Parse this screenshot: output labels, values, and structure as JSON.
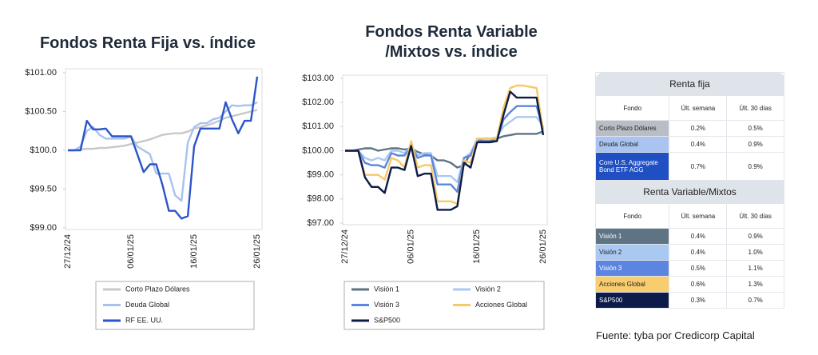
{
  "chart_data": [
    {
      "type": "line",
      "title": "Fondos Renta Fija vs. índice",
      "categories": [
        "27/12/24",
        null,
        null,
        null,
        null,
        null,
        null,
        null,
        null,
        null,
        "06/01/25",
        null,
        null,
        null,
        null,
        null,
        null,
        null,
        null,
        null,
        "16/01/25",
        null,
        null,
        null,
        null,
        null,
        null,
        null,
        null,
        null,
        "26/01/25"
      ],
      "ylim": [
        99,
        101
      ],
      "yticks": [
        {
          "value": 99,
          "label": "$99.00"
        },
        {
          "value": 99.5,
          "label": "$99.50"
        },
        {
          "value": 100,
          "label": "$100.0"
        },
        {
          "value": 100.5,
          "label": "$100.50"
        },
        {
          "value": 101,
          "label": "$101.00"
        }
      ],
      "series": [
        {
          "name": "Corto Plazo Dólares",
          "color": "#c8c8c8",
          "values": [
            100,
            100,
            100.01,
            100.02,
            100.02,
            100.03,
            100.03,
            100.04,
            100.05,
            100.06,
            100.08,
            100.1,
            100.12,
            100.14,
            100.17,
            100.2,
            100.21,
            100.22,
            100.22,
            100.24,
            100.28,
            100.3,
            100.32,
            100.35,
            100.38,
            100.42,
            100.44,
            100.46,
            100.48,
            100.5,
            100.52
          ]
        },
        {
          "name": "Deuda Global",
          "color": "#a8c2ef",
          "values": [
            100,
            100,
            100.05,
            100.25,
            100.3,
            100.2,
            100.15,
            100.15,
            100.15,
            100.15,
            100.18,
            100.05,
            100.0,
            99.95,
            99.7,
            99.7,
            99.7,
            99.42,
            99.35,
            100.1,
            100.3,
            100.35,
            100.35,
            100.4,
            100.42,
            100.5,
            100.58,
            100.57,
            100.58,
            100.58,
            100.62
          ]
        },
        {
          "name": "RF EE. UU.",
          "color": "#2b55c8",
          "values": [
            100,
            100,
            100,
            100.38,
            100.27,
            100.27,
            100.28,
            100.18,
            100.18,
            100.18,
            100.18,
            99.95,
            99.72,
            99.82,
            99.82,
            99.55,
            99.22,
            99.22,
            99.12,
            99.15,
            100.05,
            100.28,
            100.28,
            100.28,
            100.28,
            100.62,
            100.4,
            100.22,
            100.38,
            100.38,
            100.95
          ]
        }
      ]
    },
    {
      "type": "line",
      "title": "Fondos Renta Variable /Mixtos vs. índice",
      "categories": [
        "27/12/24",
        null,
        null,
        null,
        null,
        null,
        null,
        null,
        null,
        null,
        "06/01/25",
        null,
        null,
        null,
        null,
        null,
        null,
        null,
        null,
        null,
        "16/01/25",
        null,
        null,
        null,
        null,
        null,
        null,
        null,
        null,
        null,
        "26/01/25"
      ],
      "ylim": [
        97,
        103
      ],
      "yticks": [
        {
          "value": 97,
          "label": "$97.00"
        },
        {
          "value": 98,
          "label": "$98.00"
        },
        {
          "value": 99,
          "label": "$99.00"
        },
        {
          "value": 100,
          "label": "$100.00"
        },
        {
          "value": 101,
          "label": "$101.00"
        },
        {
          "value": 102,
          "label": "$102.00"
        },
        {
          "value": 103,
          "label": "$103.00"
        }
      ],
      "series": [
        {
          "name": "Visión 1",
          "color": "#5e7384",
          "values": [
            100,
            100,
            100.05,
            100.1,
            100.1,
            100.0,
            100.05,
            100.1,
            100.1,
            100.05,
            100.1,
            99.95,
            99.85,
            99.8,
            99.6,
            99.6,
            99.5,
            99.3,
            99.4,
            99.9,
            100.4,
            100.4,
            100.4,
            100.5,
            100.6,
            100.65,
            100.7,
            100.7,
            100.7,
            100.7,
            100.8
          ]
        },
        {
          "name": "Visión 2",
          "color": "#a9c9f2",
          "values": [
            100,
            100,
            100,
            99.7,
            99.6,
            99.7,
            99.6,
            100.0,
            100.0,
            99.9,
            100.2,
            99.8,
            99.9,
            99.9,
            98.95,
            98.95,
            98.95,
            98.7,
            99.7,
            99.9,
            100.5,
            100.5,
            100.5,
            100.55,
            101.0,
            101.2,
            101.4,
            101.4,
            101.4,
            101.4,
            101.0
          ]
        },
        {
          "name": "Visión 3",
          "color": "#5b85e0",
          "values": [
            100,
            100,
            100,
            99.5,
            99.4,
            99.4,
            99.3,
            99.9,
            99.8,
            99.8,
            100.2,
            99.7,
            99.8,
            99.8,
            98.6,
            98.6,
            98.6,
            98.3,
            99.7,
            99.8,
            100.4,
            100.5,
            100.5,
            100.5,
            101.3,
            101.6,
            101.85,
            101.85,
            101.85,
            101.85,
            100.9
          ]
        },
        {
          "name": "Acciones Global",
          "color": "#f7c965",
          "values": [
            100,
            100,
            100,
            99.0,
            99.0,
            99.0,
            98.8,
            99.7,
            99.6,
            99.3,
            100.4,
            99.3,
            99.4,
            99.4,
            97.9,
            97.9,
            97.9,
            97.8,
            99.6,
            99.5,
            100.5,
            100.5,
            100.5,
            100.5,
            101.8,
            102.6,
            102.7,
            102.7,
            102.65,
            102.6,
            100.8
          ]
        },
        {
          "name": "S&P500",
          "color": "#0d1b4a",
          "values": [
            100,
            100,
            100,
            98.9,
            98.5,
            98.5,
            98.25,
            99.3,
            99.3,
            99.2,
            100.2,
            98.95,
            99.05,
            99.05,
            97.55,
            97.55,
            97.55,
            97.7,
            99.5,
            99.3,
            100.35,
            100.35,
            100.35,
            100.4,
            101.5,
            102.45,
            102.2,
            102.2,
            102.2,
            102.2,
            100.65
          ]
        }
      ]
    }
  ],
  "table": {
    "sections": [
      {
        "title": "Renta fija",
        "columns": [
          "Fondo",
          "Últ. semana",
          "Últ. 30 días"
        ],
        "rows": [
          {
            "cells": [
              "Corto Plazo Dólares",
              "0.2%",
              "0.5%"
            ],
            "color": "#b9bec6"
          },
          {
            "cells": [
              "Deuda Global",
              "0.4%",
              "0.9%"
            ],
            "color": "#a9c4f0"
          },
          {
            "cells": [
              "Core U.S. Aggregate Bond ETF AGG",
              "0.7%",
              "0.9%"
            ],
            "color": "#1f4fc2"
          }
        ]
      },
      {
        "title": "Renta Variable/Mixtos",
        "columns": [
          "Fondo",
          "Últ. semana",
          "Últ. 30 días"
        ],
        "rows": [
          {
            "cells": [
              "Visión 1",
              "0.4%",
              "0.9%"
            ],
            "color": "#5e7384"
          },
          {
            "cells": [
              "Visión 2",
              "0.4%",
              "1.0%"
            ],
            "color": "#a9c9f2"
          },
          {
            "cells": [
              "Visión 3",
              "0.5%",
              "1.1%"
            ],
            "color": "#5b85e0"
          },
          {
            "cells": [
              "Acciones Global",
              "0.6%",
              "1.3%"
            ],
            "color": "#f8cd6e"
          },
          {
            "cells": [
              "S&P500",
              "0.3%",
              "0.7%"
            ],
            "color": "#0d1b4a"
          }
        ]
      }
    ]
  },
  "source": "Fuente: tyba por Credicorp Capital"
}
